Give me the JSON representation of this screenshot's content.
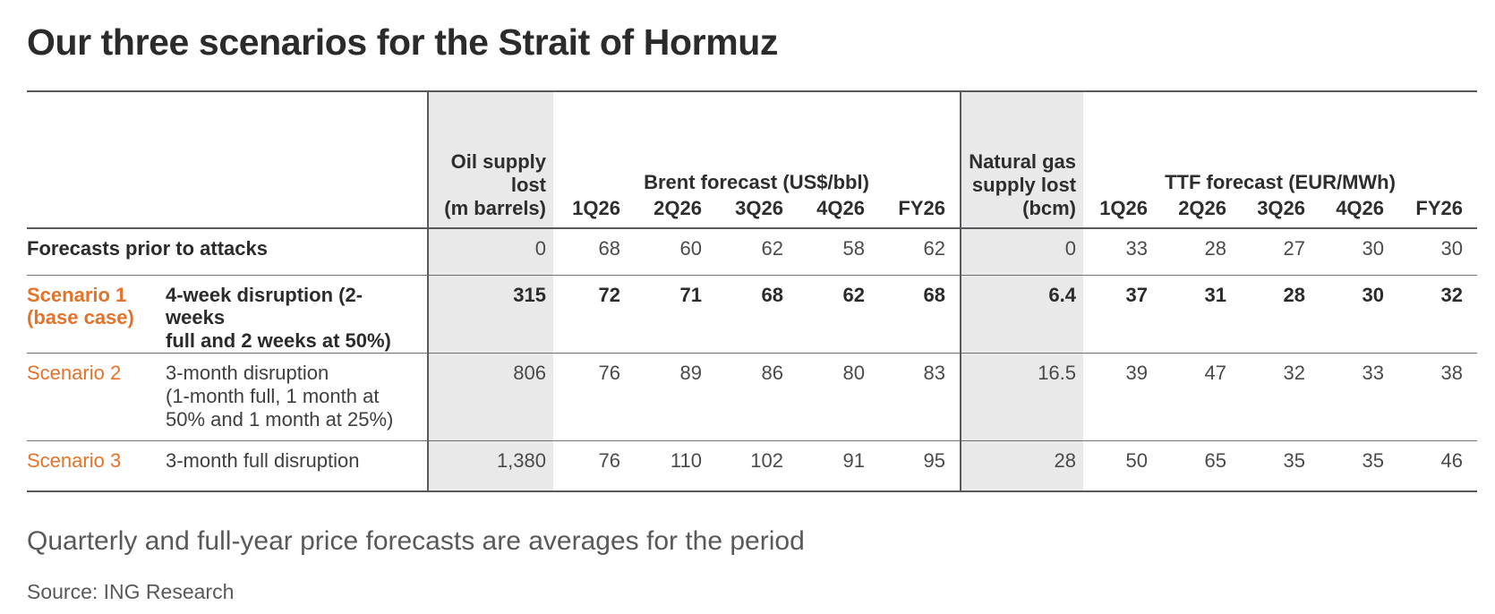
{
  "colors": {
    "accent_orange": "#e4732a",
    "shade_gray": "#e9e9e9",
    "rule_dark": "#57595c",
    "text_dark": "#2b2b2b",
    "text_gray": "#4a4a4a"
  },
  "header": {
    "title": "Our three scenarios for the Strait of Hormuz"
  },
  "table": {
    "oil_col_header": "Oil supply\nlost\n(m barrels)",
    "gas_col_header": "Natural gas\nsupply lost\n(bcm)",
    "brent_group_header": "Brent forecast (US$/bbl)",
    "ttf_group_header": "TTF forecast (EUR/MWh)",
    "brent_quarters": [
      "1Q26",
      "2Q26",
      "3Q26",
      "4Q26",
      "FY26"
    ],
    "ttf_quarters": [
      "1Q26",
      "2Q26",
      "3Q26",
      "4Q26",
      "FY26"
    ],
    "rows": [
      {
        "label": "Forecasts prior to attacks",
        "desc": "",
        "oil": "0",
        "brent": [
          "68",
          "60",
          "62",
          "58",
          "62"
        ],
        "gas": "0",
        "ttf": [
          "33",
          "28",
          "27",
          "30",
          "30"
        ]
      },
      {
        "label": "Scenario 1\n(base case)",
        "desc": "4-week disruption (2-weeks\nfull and 2 weeks at 50%)",
        "oil": "315",
        "brent": [
          "72",
          "71",
          "68",
          "62",
          "68"
        ],
        "gas": "6.4",
        "ttf": [
          "37",
          "31",
          "28",
          "30",
          "32"
        ]
      },
      {
        "label": "Scenario 2",
        "desc": "3-month disruption\n(1-month full, 1 month at\n50% and 1 month at 25%)",
        "oil": "806",
        "brent": [
          "76",
          "89",
          "86",
          "80",
          "83"
        ],
        "gas": "16.5",
        "ttf": [
          "39",
          "47",
          "32",
          "33",
          "38"
        ]
      },
      {
        "label": "Scenario 3",
        "desc": "3-month full disruption",
        "oil": "1,380",
        "brent": [
          "76",
          "110",
          "102",
          "91",
          "95"
        ],
        "gas": "28",
        "ttf": [
          "50",
          "65",
          "35",
          "35",
          "46"
        ]
      }
    ]
  },
  "footer": {
    "note": "Quarterly and full-year price forecasts are averages for the period",
    "source": "Source: ING Research"
  }
}
